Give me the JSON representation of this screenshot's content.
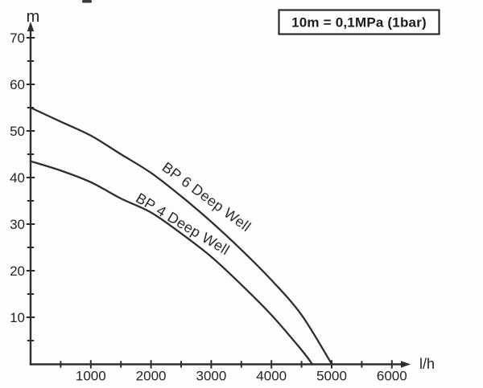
{
  "chart_data": {
    "type": "line",
    "title": "",
    "note": "10m = 0,1MPa (1bar)",
    "xlabel": "l/h",
    "ylabel": "m",
    "xlim": [
      0,
      6300
    ],
    "ylim": [
      0,
      73
    ],
    "grid": false,
    "legend_position": "inline-rotated-labels",
    "x_major_ticks": [
      1000,
      2000,
      3000,
      4000,
      5000,
      6000
    ],
    "x_minor_ticks": [
      500,
      1500,
      2500,
      3500,
      4500,
      5500
    ],
    "y_major_ticks": [
      10,
      20,
      30,
      40,
      50,
      60,
      70
    ],
    "y_minor_ticks": [
      5,
      15,
      25,
      35,
      45,
      55,
      65
    ],
    "series": [
      {
        "name": "BP 6 Deep Well",
        "x": [
          0,
          500,
          1000,
          1500,
          2000,
          2500,
          3000,
          3500,
          4000,
          4500,
          5000
        ],
        "y": [
          55,
          52,
          49,
          45,
          41,
          36,
          30.5,
          24.5,
          18,
          10.5,
          0
        ]
      },
      {
        "name": "BP 4 Deep Well",
        "x": [
          0,
          500,
          1000,
          1500,
          2000,
          2500,
          3000,
          3500,
          4000,
          4500,
          4675
        ],
        "y": [
          43.5,
          41.5,
          39,
          35.5,
          32.5,
          28,
          23,
          17,
          10.5,
          3,
          0
        ]
      }
    ]
  },
  "colors": {
    "line": "#2e2e2e",
    "axis": "#2e2e2e",
    "text": "#222222",
    "background": "#fdfdfd",
    "note_border": "#2a2a2a"
  }
}
